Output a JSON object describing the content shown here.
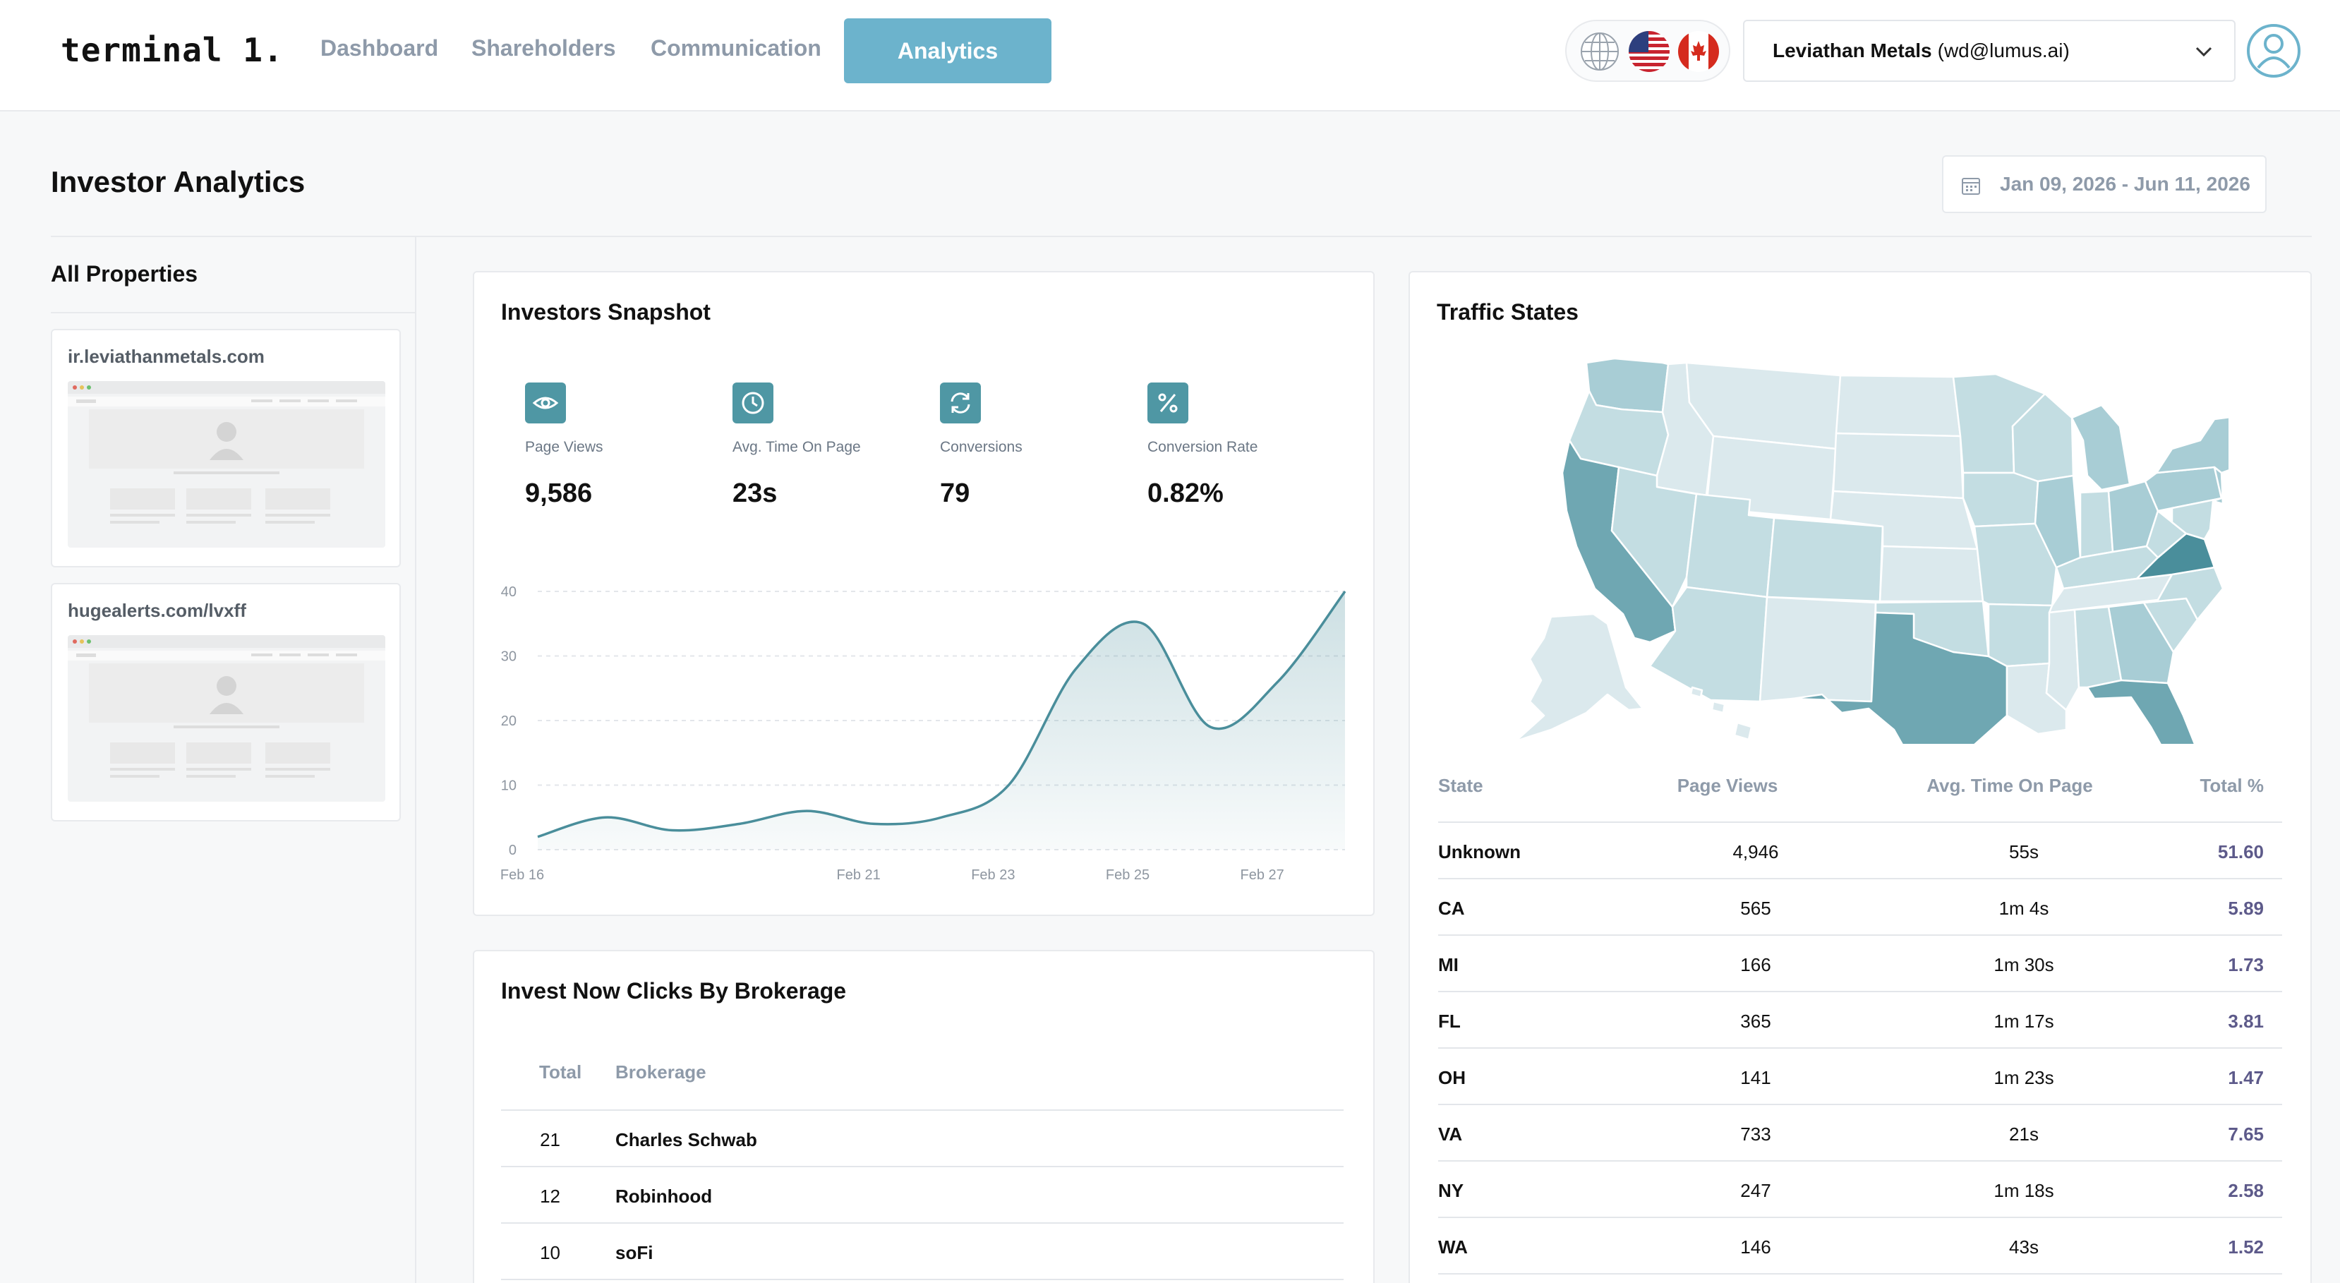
{
  "app": {
    "logo": "terminal 1.",
    "nav": [
      {
        "label": "Dashboard",
        "active": false
      },
      {
        "label": "Shareholders",
        "active": false
      },
      {
        "label": "Communication",
        "active": false
      },
      {
        "label": "Analytics",
        "active": true
      }
    ],
    "account": {
      "company": "Leviathan Metals",
      "email": "(wd@lumus.ai)"
    },
    "icons": [
      "globe-icon",
      "us-flag-icon",
      "canada-flag-icon",
      "chevron-down-icon",
      "user-avatar-icon"
    ]
  },
  "page": {
    "title": "Investor Analytics",
    "date_range": "Jan 09, 2026 - Jun 11, 2026"
  },
  "sidebar": {
    "title": "All Properties",
    "properties": [
      {
        "url": "ir.leviathanmetals.com"
      },
      {
        "url": "hugealerts.com/lvxff"
      }
    ]
  },
  "snapshot": {
    "title": "Investors Snapshot",
    "metrics": [
      {
        "label": "Page Views",
        "value": "9,586",
        "icon": "eye-icon"
      },
      {
        "label": "Avg. Time On Page",
        "value": "23s",
        "icon": "clock-icon"
      },
      {
        "label": "Conversions",
        "value": "79",
        "icon": "refresh-icon"
      },
      {
        "label": "Conversion Rate",
        "value": "0.82%",
        "icon": "percent-icon"
      }
    ]
  },
  "chart_data": {
    "type": "area",
    "x": [
      "Feb 16",
      "Feb 17",
      "Feb 18",
      "Feb 19",
      "Feb 20",
      "Feb 21",
      "Feb 22",
      "Feb 23",
      "Feb 24",
      "Feb 25",
      "Feb 26",
      "Feb 27",
      "Feb 28"
    ],
    "x_tick_labels": [
      "Feb 16",
      "Feb 21",
      "Feb 23",
      "Feb 25",
      "Feb 27"
    ],
    "values": [
      2,
      5,
      3,
      4,
      6,
      4,
      5,
      10,
      28,
      35,
      19,
      26,
      40
    ],
    "yticks": [
      0,
      10,
      20,
      30,
      40
    ],
    "ylim": [
      0,
      40
    ],
    "grid": true,
    "color": "#4a8e9b"
  },
  "brokerage": {
    "title": "Invest Now Clicks By Brokerage",
    "columns": [
      "Total",
      "Brokerage"
    ],
    "rows": [
      {
        "total": "21",
        "name": "Charles Schwab"
      },
      {
        "total": "12",
        "name": "Robinhood"
      },
      {
        "total": "10",
        "name": "soFi"
      }
    ]
  },
  "traffic": {
    "title": "Traffic States",
    "columns": [
      "State",
      "Page Views",
      "Avg. Time On Page",
      "Total %"
    ],
    "rows": [
      {
        "state": "Unknown",
        "views": "4,946",
        "time": "55s",
        "pct": "51.60"
      },
      {
        "state": "CA",
        "views": "565",
        "time": "1m 4s",
        "pct": "5.89"
      },
      {
        "state": "MI",
        "views": "166",
        "time": "1m 30s",
        "pct": "1.73"
      },
      {
        "state": "FL",
        "views": "365",
        "time": "1m 17s",
        "pct": "3.81"
      },
      {
        "state": "OH",
        "views": "141",
        "time": "1m 23s",
        "pct": "1.47"
      },
      {
        "state": "VA",
        "views": "733",
        "time": "21s",
        "pct": "7.65"
      },
      {
        "state": "NY",
        "views": "247",
        "time": "1m 18s",
        "pct": "2.58"
      },
      {
        "state": "WA",
        "views": "146",
        "time": "43s",
        "pct": "1.52"
      }
    ],
    "map_colors": {
      "light": "#dbe9ed",
      "mid": "#a8cdd5",
      "dark": "#6fa7b2",
      "darkest": "#4a8e9b"
    }
  }
}
